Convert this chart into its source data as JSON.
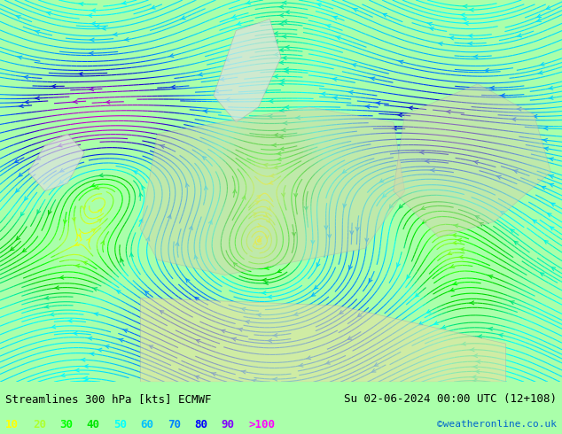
{
  "title_left": "Streamlines 300 hPa [kts] ECMWF",
  "title_right": "Su 02-06-2024 00:00 UTC (12+108)",
  "credit": "©weatheronline.co.uk",
  "legend_values": [
    "10",
    "20",
    "30",
    "40",
    "50",
    "60",
    "70",
    "80",
    "90",
    ">100"
  ],
  "legend_colors": [
    "#ffff00",
    "#adff2f",
    "#00ff00",
    "#00e400",
    "#00ffff",
    "#00bfff",
    "#0080ff",
    "#0000ff",
    "#8000ff",
    "#ff00ff"
  ],
  "bg_color": "#aaffaa",
  "fig_width": 6.34,
  "fig_height": 4.9,
  "dpi": 100,
  "streamline_color_stops": [
    [
      0.0,
      "#ffff00"
    ],
    [
      0.11,
      "#adff2f"
    ],
    [
      0.22,
      "#00ff00"
    ],
    [
      0.33,
      "#00cc00"
    ],
    [
      0.44,
      "#00ffff"
    ],
    [
      0.55,
      "#00bfff"
    ],
    [
      0.66,
      "#0055ff"
    ],
    [
      0.77,
      "#0000cc"
    ],
    [
      0.88,
      "#8800cc"
    ],
    [
      1.0,
      "#cc00cc"
    ]
  ],
  "bottom_bar_color": "#ffffff",
  "title_fontsize": 9,
  "legend_fontsize": 9,
  "credit_fontsize": 8
}
